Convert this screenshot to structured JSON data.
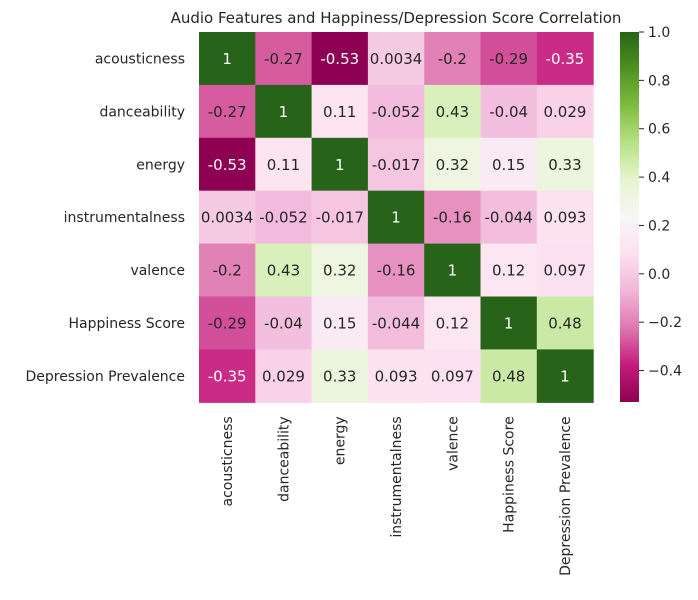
{
  "chart_data": {
    "type": "heatmap",
    "title": "Audio Features and Happiness/Depression Score Correlation",
    "row_labels": [
      "acousticness",
      "danceability",
      "energy",
      "instrumentalness",
      "valence",
      "Happiness Score",
      "Depression Prevalence"
    ],
    "col_labels": [
      "acousticness",
      "danceability",
      "energy",
      "instrumentalness",
      "valence",
      "Happiness Score",
      "Depression Prevalence"
    ],
    "values": [
      [
        1,
        -0.27,
        -0.53,
        0.0034,
        -0.2,
        -0.29,
        -0.35
      ],
      [
        -0.27,
        1,
        0.11,
        -0.052,
        0.43,
        -0.04,
        0.029
      ],
      [
        -0.53,
        0.11,
        1,
        -0.017,
        0.32,
        0.15,
        0.33
      ],
      [
        0.0034,
        -0.052,
        -0.017,
        1,
        -0.16,
        -0.044,
        0.093
      ],
      [
        -0.2,
        0.43,
        0.32,
        -0.16,
        1,
        0.12,
        0.097
      ],
      [
        -0.29,
        -0.04,
        0.15,
        -0.044,
        0.12,
        1,
        0.48
      ],
      [
        -0.35,
        0.029,
        0.33,
        0.093,
        0.097,
        0.48,
        1
      ]
    ],
    "value_labels": [
      [
        "1",
        "-0.27",
        "-0.53",
        "0.0034",
        "-0.2",
        "-0.29",
        "-0.35"
      ],
      [
        "-0.27",
        "1",
        "0.11",
        "-0.052",
        "0.43",
        "-0.04",
        "0.029"
      ],
      [
        "-0.53",
        "0.11",
        "1",
        "-0.017",
        "0.32",
        "0.15",
        "0.33"
      ],
      [
        "0.0034",
        "-0.052",
        "-0.017",
        "1",
        "-0.16",
        "-0.044",
        "0.093"
      ],
      [
        "-0.2",
        "0.43",
        "0.32",
        "-0.16",
        "1",
        "0.12",
        "0.097"
      ],
      [
        "-0.29",
        "-0.04",
        "0.15",
        "-0.044",
        "0.12",
        "1",
        "0.48"
      ],
      [
        "-0.35",
        "0.029",
        "0.33",
        "0.093",
        "0.097",
        "0.48",
        "1"
      ]
    ],
    "colormap": "PiYG",
    "vmin": -0.53,
    "vmax": 1,
    "colorbar": {
      "ticks": [
        1.0,
        0.8,
        0.6,
        0.4,
        0.2,
        0.0,
        -0.2,
        -0.4
      ],
      "tick_labels": [
        "1.0",
        "0.8",
        "0.6",
        "0.4",
        "0.2",
        "0.0",
        "−0.2",
        "−0.4"
      ],
      "placement": "right"
    },
    "annotations": true,
    "grid": false
  }
}
